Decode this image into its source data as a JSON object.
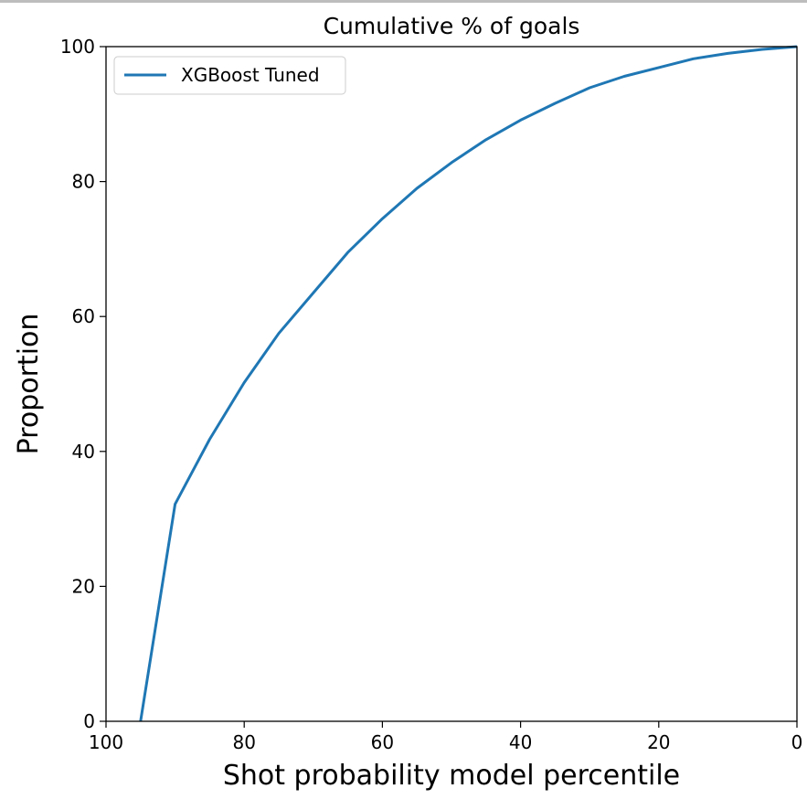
{
  "chart_data": {
    "type": "line",
    "title": "Cumulative % of goals",
    "xlabel": "Shot probability model percentile",
    "ylabel": "Proportion",
    "xlim": [
      100,
      0
    ],
    "ylim": [
      0,
      100
    ],
    "xticks": [
      100,
      80,
      60,
      40,
      20,
      0
    ],
    "yticks": [
      0,
      20,
      40,
      60,
      80,
      100
    ],
    "grid": false,
    "legend": "top-left",
    "series": [
      {
        "name": "XGBoost Tuned",
        "color": "#1f77b4",
        "x": [
          95,
          90,
          85,
          80,
          75,
          70,
          65,
          60,
          55,
          50,
          45,
          40,
          35,
          30,
          25,
          20,
          15,
          10,
          5,
          0
        ],
        "y": [
          0,
          32.2,
          41.8,
          50.2,
          57.5,
          63.5,
          69.5,
          74.5,
          79.0,
          82.8,
          86.2,
          89.1,
          91.6,
          93.9,
          95.6,
          96.9,
          98.2,
          99.0,
          99.6,
          100
        ]
      }
    ]
  }
}
